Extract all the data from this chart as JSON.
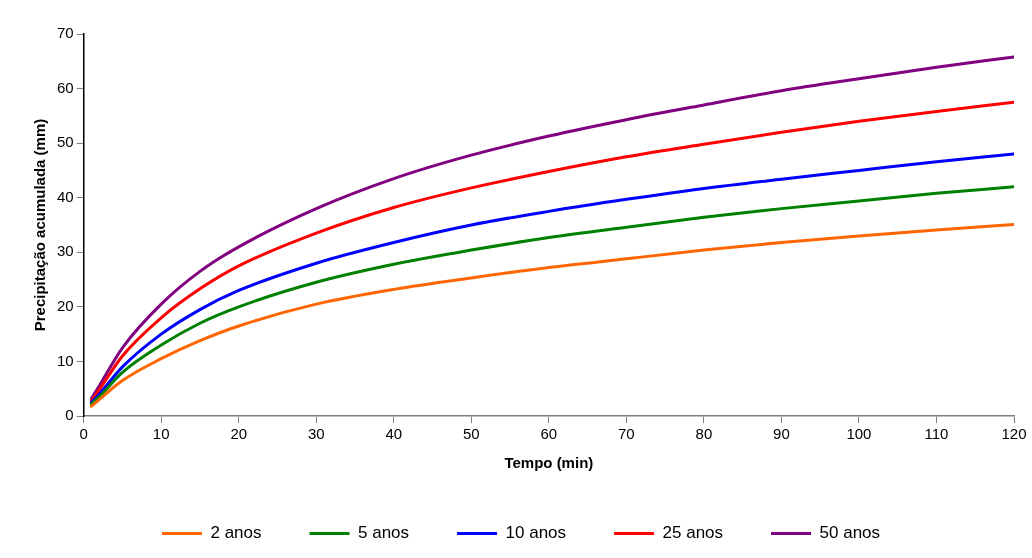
{
  "chart_data": {
    "type": "line",
    "xlabel": "Tempo (min)",
    "ylabel": "Precipitação acumulada (mm)",
    "x": [
      1,
      2,
      5,
      10,
      15,
      20,
      30,
      40,
      50,
      60,
      70,
      80,
      90,
      100,
      110,
      120
    ],
    "series": [
      {
        "name": "2 anos",
        "color": "#ff6600",
        "values": [
          1.8,
          3,
          6.5,
          10.5,
          13.8,
          16.5,
          20.5,
          23.2,
          25.3,
          27.2,
          28.8,
          30.4,
          31.8,
          33,
          34.1,
          35.1
        ]
      },
      {
        "name": "5 anos",
        "color": "#008000",
        "values": [
          2.2,
          3.5,
          8,
          13,
          17,
          20,
          24.5,
          27.8,
          30.4,
          32.7,
          34.6,
          36.4,
          38,
          39.4,
          40.8,
          42
        ]
      },
      {
        "name": "10 anos",
        "color": "#0000ff",
        "values": [
          2.5,
          4,
          9,
          15,
          19.5,
          23,
          28,
          31.8,
          35,
          37.5,
          39.7,
          41.7,
          43.4,
          45,
          46.6,
          48
        ]
      },
      {
        "name": "25 anos",
        "color": "#ff0000",
        "values": [
          2.8,
          4.8,
          11,
          18,
          23.3,
          27.5,
          33.5,
          38.2,
          41.8,
          44.8,
          47.5,
          49.8,
          52,
          54,
          55.8,
          57.5
        ]
      },
      {
        "name": "50 anos",
        "color": "#800080",
        "values": [
          3.2,
          5.5,
          12.5,
          20.5,
          26.5,
          31,
          38,
          43.5,
          47.8,
          51.3,
          54.3,
          57,
          59.6,
          61.8,
          63.9,
          65.8
        ]
      }
    ],
    "xlim": [
      0,
      120
    ],
    "xticks": [
      0,
      10,
      20,
      30,
      40,
      50,
      60,
      70,
      80,
      90,
      100,
      110,
      120
    ],
    "ylim": [
      0,
      70
    ],
    "yticks": [
      0,
      10,
      20,
      30,
      40,
      50,
      60,
      70
    ],
    "grid": false,
    "legend": "bottom",
    "marker": "none",
    "line_style": "solid"
  }
}
